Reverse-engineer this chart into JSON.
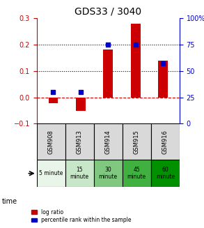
{
  "title": "GDS33 / 3040",
  "categories": [
    "GSM908",
    "GSM913",
    "GSM914",
    "GSM915",
    "GSM916"
  ],
  "log_ratio": [
    -0.022,
    -0.052,
    0.182,
    0.278,
    0.138
  ],
  "percentile_rank": [
    30,
    30,
    75,
    75,
    57
  ],
  "time_labels": [
    "5 minute",
    "15\nminute",
    "30\nminute",
    "45\nminute",
    "60\nminute"
  ],
  "time_colors": [
    "#d9f0d9",
    "#b3e6b3",
    "#80d080",
    "#4dbb4d",
    "#1aa01a"
  ],
  "bar_color": "#cc0000",
  "dot_color": "#0000cc",
  "left_ylim": [
    -0.1,
    0.3
  ],
  "right_ylim": [
    0,
    100
  ],
  "left_yticks": [
    -0.1,
    0.0,
    0.1,
    0.2,
    0.3
  ],
  "right_yticks": [
    0,
    25,
    50,
    75,
    100
  ],
  "dotted_lines": [
    0.1,
    0.2
  ],
  "legend_red": "log ratio",
  "legend_blue": "percentile rank within the sample",
  "fig_width": 2.93,
  "fig_height": 3.27
}
